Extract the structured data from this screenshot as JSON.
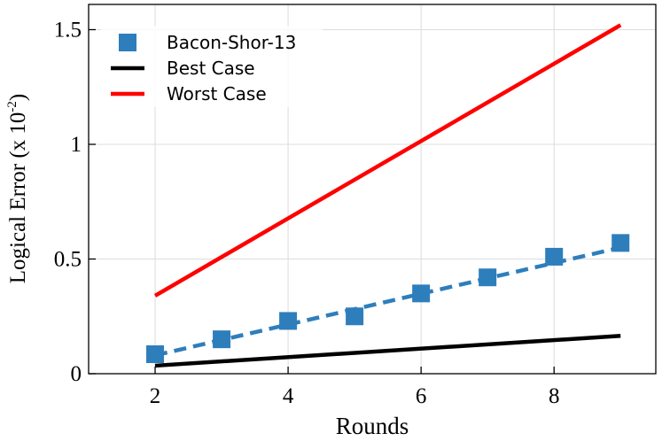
{
  "chart_data": {
    "type": "line",
    "xlabel": "Rounds",
    "ylabel": {
      "text": "Logical Error (x 10",
      "sup": "-2",
      "close": ")"
    },
    "xlim": [
      1,
      9.53
    ],
    "ylim": [
      0,
      1.61
    ],
    "xticks": [
      2,
      4,
      6,
      8
    ],
    "yticks": [
      0,
      0.5,
      1,
      1.5
    ],
    "grid": true,
    "legend": "upper left",
    "series": [
      {
        "name": "Bacon-Shor-13",
        "color": "#2e7ebc",
        "marker": "square",
        "x": [
          2,
          3,
          4,
          5,
          6,
          7,
          8,
          9
        ],
        "values": [
          0.085,
          0.15,
          0.23,
          0.25,
          0.35,
          0.42,
          0.51,
          0.57
        ],
        "fit": {
          "x": [
            2,
            9
          ],
          "values": [
            0.08,
            0.55
          ]
        }
      },
      {
        "name": "Best Case",
        "color": "#000000",
        "x": [
          2,
          9
        ],
        "values": [
          0.035,
          0.165
        ]
      },
      {
        "name": "Worst Case",
        "color": "#ff0000",
        "x": [
          2,
          9
        ],
        "values": [
          0.34,
          1.52
        ]
      }
    ]
  }
}
